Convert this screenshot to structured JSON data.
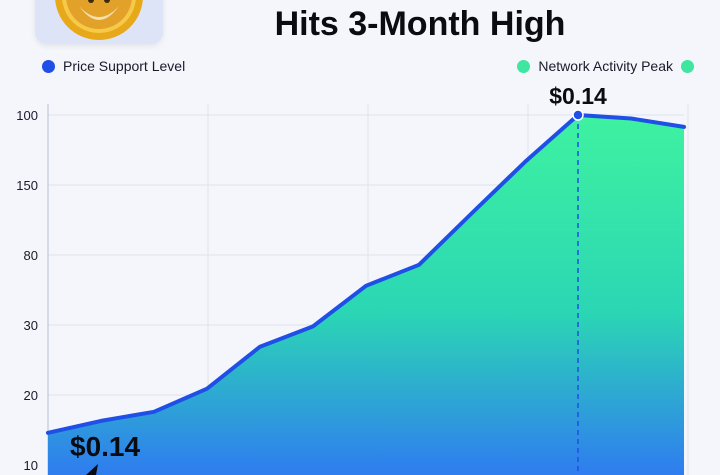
{
  "header": {
    "title": "Hits 3-Month High",
    "logo_icon": "coin-logo-icon"
  },
  "legend": {
    "left": {
      "label": "Price Support Level",
      "color": "#1f4fe6"
    },
    "right": {
      "label": "Network Activity Peak",
      "color": "#3ee6a0"
    }
  },
  "chart_data": {
    "type": "area",
    "y_tick_labels": [
      "100",
      "150",
      "80",
      "30",
      "20",
      "10"
    ],
    "y_tick_values": [
      6,
      5,
      4,
      3,
      2,
      1
    ],
    "x": [
      0,
      1,
      2,
      3,
      4,
      5,
      6,
      7,
      8,
      9,
      10,
      11,
      12
    ],
    "series": [
      {
        "name": "Price Support Level",
        "values": [
          1.46,
          1.63,
          1.76,
          2.09,
          2.69,
          2.98,
          3.56,
          3.86,
          4.6,
          5.33,
          6.0,
          5.95,
          5.83
        ],
        "color": "#1f4fe6"
      }
    ],
    "annotations": [
      {
        "text": "$0.14",
        "index": 10
      },
      {
        "text": "$0.14",
        "index": 0
      }
    ],
    "ylim": [
      0.8,
      6.3
    ],
    "grid": true
  }
}
